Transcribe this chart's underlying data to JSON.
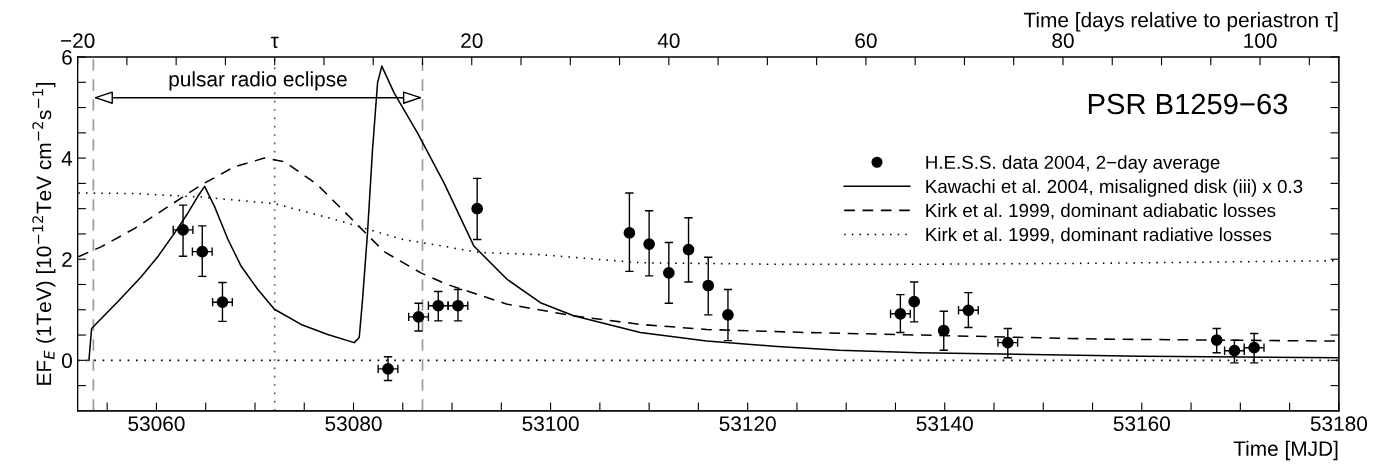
{
  "chart_data": {
    "type": "scatter",
    "xlabel": "Time [MJD]",
    "x2label": "Time [days relative to periastron τ]",
    "ylabel": "EF$_{E}$ (1TeV) [10$^{−12}$TeV cm$^{−2}$s$^{−1}$]",
    "annotations": [
      "PSR B1259−63",
      "pulsar radio eclipse"
    ],
    "xlim": [
      53052,
      53180
    ],
    "xticks": [
      {
        "value": 53055,
        "label": null
      },
      53060,
      {
        "value": 53065,
        "label": null
      },
      {
        "value": 53070,
        "label": null
      },
      {
        "value": 53075,
        "label": null
      },
      53080,
      {
        "value": 53085,
        "label": null
      },
      {
        "value": 53090,
        "label": null
      },
      {
        "value": 53095,
        "label": null
      },
      53100,
      {
        "value": 53105,
        "label": null
      },
      {
        "value": 53110,
        "label": null
      },
      {
        "value": 53115,
        "label": null
      },
      53120,
      {
        "value": 53125,
        "label": null
      },
      {
        "value": 53130,
        "label": null
      },
      {
        "value": 53135,
        "label": null
      },
      53140,
      {
        "value": 53145,
        "label": null
      },
      {
        "value": 53150,
        "label": null
      },
      {
        "value": 53155,
        "label": null
      },
      53160,
      {
        "value": 53165,
        "label": null
      },
      {
        "value": 53170,
        "label": null
      },
      {
        "value": 53175,
        "label": null
      },
      53180
    ],
    "x2lim": [
      -20,
      108
    ],
    "x2ticks": [
      {
        "value": -20,
        "label": "−20"
      },
      {
        "value": -15,
        "label": null
      },
      {
        "value": -10,
        "label": null
      },
      {
        "value": -5,
        "label": null
      },
      {
        "value": 0,
        "label": "τ"
      },
      {
        "value": 5,
        "label": null
      },
      {
        "value": 10,
        "label": null
      },
      {
        "value": 15,
        "label": null
      },
      20,
      {
        "value": 25,
        "label": null
      },
      {
        "value": 30,
        "label": null
      },
      {
        "value": 35,
        "label": null
      },
      40,
      {
        "value": 45,
        "label": null
      },
      {
        "value": 50,
        "label": null
      },
      {
        "value": 55,
        "label": null
      },
      60,
      {
        "value": 65,
        "label": null
      },
      {
        "value": 70,
        "label": null
      },
      {
        "value": 75,
        "label": null
      },
      80,
      {
        "value": 85,
        "label": null
      },
      {
        "value": 90,
        "label": null
      },
      {
        "value": 95,
        "label": null
      },
      100,
      {
        "value": 105,
        "label": null
      }
    ],
    "ylim": [
      -1,
      6
    ],
    "yticks": [
      {
        "value": -0.5,
        "label": null
      },
      0,
      {
        "value": 0.5,
        "label": null
      },
      {
        "value": 1,
        "label": null
      },
      {
        "value": 1.5,
        "label": null
      },
      2,
      {
        "value": 2.5,
        "label": null
      },
      {
        "value": 3,
        "label": null
      },
      {
        "value": 3.5,
        "label": null
      },
      4,
      {
        "value": 4.5,
        "label": null
      },
      {
        "value": 5,
        "label": null
      },
      {
        "value": 5.5,
        "label": null
      },
      6
    ],
    "grid": false,
    "legend": "right",
    "ref_lines": [
      {
        "axis": "y",
        "value": 0,
        "line_style": "dotted",
        "color": "#000000"
      },
      {
        "axis": "x",
        "value": 53072,
        "line_style": "dotted",
        "color": "#555555"
      },
      {
        "axis": "x",
        "value": 53053.6,
        "line_style": "dashed",
        "color": "#999999"
      },
      {
        "axis": "x",
        "value": 53087,
        "line_style": "dashed",
        "color": "#999999"
      }
    ],
    "series": [
      {
        "name": "H.E.S.S. data 2004, 2−day average",
        "type": "scatter",
        "marker": "circle",
        "color": "#000000",
        "x": [
          53062.7,
          53064.65,
          53066.7,
          53083.5,
          53086.6,
          53088.6,
          53090.6,
          53092.55,
          53108.0,
          53110.0,
          53112.0,
          53114.0,
          53116.0,
          53118.0,
          53135.5,
          53136.9,
          53139.9,
          53142.4,
          53146.4,
          53167.6,
          53169.4,
          53171.4
        ],
        "values": [
          2.58,
          2.15,
          1.15,
          -0.17,
          0.86,
          1.08,
          1.08,
          3.0,
          2.52,
          2.3,
          1.73,
          2.19,
          1.48,
          0.9,
          0.92,
          1.16,
          0.59,
          0.99,
          0.35,
          0.4,
          0.19,
          0.25
        ],
        "errors": [
          [
            2.06,
            3.07
          ],
          [
            1.66,
            2.66
          ],
          [
            0.77,
            1.54
          ],
          [
            -0.4,
            0.07
          ],
          [
            0.58,
            1.13
          ],
          [
            0.78,
            1.36
          ],
          [
            0.78,
            1.4
          ],
          [
            2.39,
            3.6
          ],
          [
            1.76,
            3.31
          ],
          [
            1.67,
            2.96
          ],
          [
            1.13,
            2.33
          ],
          [
            1.55,
            2.82
          ],
          [
            0.9,
            2.04
          ],
          [
            0.39,
            1.4
          ],
          [
            0.55,
            1.3
          ],
          [
            0.76,
            1.55
          ],
          [
            0.2,
            0.97
          ],
          [
            0.65,
            1.34
          ],
          [
            0.05,
            0.63
          ],
          [
            0.15,
            0.63
          ],
          [
            -0.05,
            0.4
          ],
          [
            -0.05,
            0.53
          ]
        ],
        "xerrors": [
          1,
          1,
          1,
          1,
          1,
          1,
          1,
          null,
          null,
          null,
          null,
          null,
          null,
          null,
          1,
          null,
          null,
          1,
          1,
          null,
          1,
          1
        ]
      },
      {
        "name": "Kawachi et al. 2004, misaligned disk (iii) x 0.3",
        "type": "line",
        "line_style": "solid",
        "marker": "none",
        "color": "#000000",
        "x": [
          53053.15,
          53053.42,
          53056.12,
          53058.48,
          53060.17,
          53061.85,
          53063.21,
          53064.22,
          53064.89,
          53065.9,
          53067.26,
          53068.6,
          53070.29,
          53071.97,
          53074.68,
          53077.38,
          53080.07,
          53080.58,
          53080.92,
          53081.42,
          53081.93,
          53082.44,
          53082.87,
          53084.12,
          53086.49,
          53089.18,
          53092.22,
          53095.6,
          53098.97,
          53102.34,
          53109.1,
          53115.84,
          53122.6,
          53129.3,
          53137.4,
          53160,
          53180
        ],
        "values": [
          0,
          0.63,
          1.17,
          1.66,
          2.06,
          2.52,
          2.92,
          3.25,
          3.44,
          3.04,
          2.39,
          1.86,
          1.4,
          1.01,
          0.71,
          0.51,
          0.35,
          0.45,
          1.21,
          2.52,
          4.17,
          5.49,
          5.82,
          5.29,
          4.5,
          3.51,
          2.26,
          1.6,
          1.14,
          0.88,
          0.55,
          0.38,
          0.28,
          0.2,
          0.15,
          0.08,
          0.05
        ]
      },
      {
        "name": "Kirk et al. 1999, dominant adiabatic losses",
        "type": "line",
        "line_style": "dashed",
        "marker": "none",
        "color": "#000000",
        "x": [
          53052.08,
          53054.43,
          53057.8,
          53061.18,
          53064.55,
          53067.93,
          53070.96,
          53072.99,
          53076.36,
          53079.74,
          53083.11,
          53086.83,
          53089.52,
          53095.6,
          53102.34,
          53109.1,
          53115.84,
          53125.96,
          53137.4,
          53155.6,
          53180
        ],
        "values": [
          2.05,
          2.25,
          2.61,
          3.04,
          3.47,
          3.83,
          4.0,
          3.93,
          3.47,
          2.81,
          2.15,
          1.73,
          1.5,
          1.11,
          0.88,
          0.71,
          0.61,
          0.55,
          0.5,
          0.42,
          0.38
        ]
      },
      {
        "name": "Kirk et al. 1999, dominant radiative losses",
        "type": "line",
        "line_style": "dotted",
        "marker": "none",
        "color": "#000000",
        "x": [
          53052.08,
          53057.8,
          53064.55,
          53071.97,
          53078.05,
          53084.8,
          53092.9,
          53098.97,
          53109.1,
          53122.6,
          53137.4,
          53155.6,
          53180
        ],
        "values": [
          3.31,
          3.3,
          3.23,
          3.1,
          2.79,
          2.4,
          2.13,
          2.09,
          1.93,
          1.9,
          1.9,
          1.92,
          1.97
        ]
      }
    ]
  }
}
